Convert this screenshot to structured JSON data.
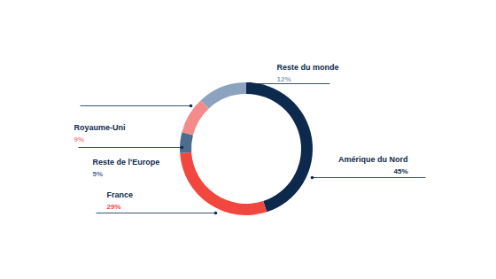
{
  "chart_data": {
    "type": "pie",
    "categories": [
      "Amérique du Nord",
      "France",
      "Reste de l'Europe",
      "Royaume-Uni",
      "Reste du monde"
    ],
    "values": [
      45,
      29,
      5,
      9,
      12
    ],
    "value_labels": [
      "45%",
      "29%",
      "5%",
      "9%",
      "12%"
    ],
    "colors": [
      "#0d2a4c",
      "#f2473e",
      "#4d6d8f",
      "#f48a8a",
      "#8ca3bf"
    ],
    "data_labels": true
  }
}
